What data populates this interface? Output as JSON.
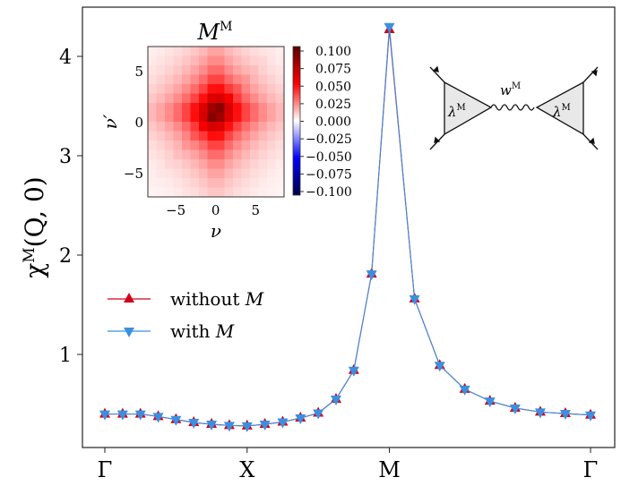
{
  "chart_data": [
    {
      "type": "line",
      "title": "",
      "ylabel": "χ^M(Q,0)",
      "ylabel_main": "χ",
      "ylabel_sup": "M",
      "ylabel_args": "(Q, 0)",
      "xlabel": "",
      "xtick_labels": [
        "Γ",
        "X",
        "M",
        "Γ"
      ],
      "xtick_positions": [
        0,
        1,
        2,
        3.414
      ],
      "yticks": [
        1,
        2,
        3,
        4
      ],
      "ylim": [
        0,
        4.45
      ],
      "grid": false,
      "legend_placement": "center-left",
      "x": [
        0,
        0.125,
        0.25,
        0.375,
        0.5,
        0.625,
        0.75,
        0.875,
        1,
        1.125,
        1.25,
        1.375,
        1.5,
        1.625,
        1.75,
        1.875,
        2,
        2.177,
        2.354,
        2.53,
        2.707,
        2.884,
        3.061,
        3.237,
        3.414
      ],
      "series": [
        {
          "name": "without M",
          "legend_text": "without",
          "legend_symbol": "M",
          "color": "#d0021b",
          "marker": "triangle-up",
          "values": [
            0.4,
            0.4,
            0.4,
            0.375,
            0.345,
            0.315,
            0.297,
            0.285,
            0.28,
            0.297,
            0.32,
            0.36,
            0.41,
            0.55,
            0.84,
            1.81,
            4.27,
            1.56,
            0.89,
            0.65,
            0.53,
            0.46,
            0.42,
            0.405,
            0.39
          ]
        },
        {
          "name": "with M",
          "legend_text": "with",
          "legend_symbol": "M",
          "color": "#3b8fe0",
          "marker": "triangle-down",
          "values": [
            0.4,
            0.4,
            0.4,
            0.375,
            0.345,
            0.315,
            0.297,
            0.285,
            0.28,
            0.297,
            0.32,
            0.36,
            0.41,
            0.55,
            0.84,
            1.81,
            4.3,
            1.56,
            0.89,
            0.65,
            0.53,
            0.46,
            0.42,
            0.405,
            0.39
          ]
        }
      ]
    },
    {
      "type": "heatmap",
      "title_main": "M",
      "title_sup": "M",
      "xlabel": "ν",
      "ylabel": "ν′",
      "nu_range": [
        -8,
        7
      ],
      "xticks": [
        "−5",
        "0",
        "5"
      ],
      "yticks": [
        "5",
        "0",
        "−5"
      ],
      "peak_value": 0.1,
      "colorbar_ticks": [
        "0.100",
        "0.075",
        "0.050",
        "0.025",
        "0.000",
        "−0.025",
        "−0.050",
        "−0.075",
        "−0.100"
      ],
      "colorbar_range": [
        -0.1,
        0.1
      ]
    }
  ],
  "diagram": {
    "lambda_left": "λ",
    "lambda_right": "λ",
    "lambda_sup": "M",
    "w": "w",
    "w_sup": "M"
  }
}
